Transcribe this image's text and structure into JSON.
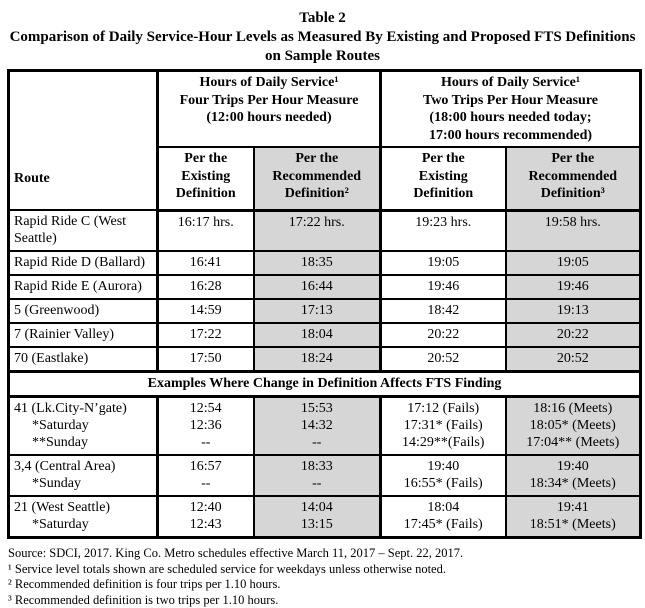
{
  "page": {
    "title": "Table 2",
    "subtitle": "Comparison of Daily Service-Hour Levels as Measured By Existing and Proposed FTS Definitions on Sample Routes"
  },
  "table": {
    "route_header": "Route",
    "group_headers": [
      "Hours of Daily Service¹\nFour Trips Per Hour Measure\n(12:00 hours needed)",
      "Hours of Daily Service¹\nTwo Trips Per Hour Measure\n(18:00 hours needed today;\n17:00 hours recommended)"
    ],
    "col_headers": [
      "Per the\nExisting\nDefinition",
      "Per the\nRecommended\nDefinition²",
      "Per the\nExisting\nDefinition",
      "Per the\nRecommended\nDefinition³"
    ],
    "rows": [
      {
        "lines": [
          {
            "route": "Rapid Ride C (West Seattle)",
            "values": [
              "16:17 hrs.",
              "17:22 hrs.",
              "19:23 hrs.",
              "19:58 hrs."
            ]
          }
        ]
      },
      {
        "lines": [
          {
            "route": "Rapid Ride D (Ballard)",
            "values": [
              "16:41",
              "18:35",
              "19:05",
              "19:05"
            ]
          }
        ]
      },
      {
        "lines": [
          {
            "route": "Rapid Ride E (Aurora)",
            "values": [
              "16:28",
              "16:44",
              "19:46",
              "19:46"
            ]
          }
        ]
      },
      {
        "lines": [
          {
            "route": "5 (Greenwood)",
            "values": [
              "14:59",
              "17:13",
              "18:42",
              "19:13"
            ]
          }
        ]
      },
      {
        "lines": [
          {
            "route": "7 (Rainier Valley)",
            "values": [
              "17:22",
              "18:04",
              "20:22",
              "20:22"
            ]
          }
        ]
      },
      {
        "lines": [
          {
            "route": "70 (Eastlake)",
            "values": [
              "17:50",
              "18:24",
              "20:52",
              "20:52"
            ]
          }
        ]
      },
      {
        "type": "section",
        "label": "Examples Where Change in Definition Affects FTS Finding"
      },
      {
        "lines": [
          {
            "route": "41 (Lk.City-N’gate)",
            "values": [
              "12:54",
              "15:53",
              "17:12 (Fails)",
              "18:16 (Meets)"
            ]
          },
          {
            "route": "*Saturday",
            "indent": true,
            "values": [
              "12:36",
              "14:32",
              "17:31* (Fails)",
              "18:05* (Meets)"
            ]
          },
          {
            "route": "**Sunday",
            "indent": true,
            "values": [
              "--",
              "--",
              "14:29**(Fails)",
              "17:04** (Meets)"
            ]
          }
        ]
      },
      {
        "lines": [
          {
            "route": "3,4 (Central Area)",
            "values": [
              "16:57",
              "18:33",
              "19:40",
              "19:40"
            ]
          },
          {
            "route": "*Sunday",
            "indent": true,
            "values": [
              "--",
              "--",
              "16:55* (Fails)",
              "18:34* (Meets)"
            ]
          }
        ]
      },
      {
        "lines": [
          {
            "route": "21 (West Seattle)",
            "values": [
              "12:40",
              "14:04",
              "18:04",
              "19:41"
            ]
          },
          {
            "route": "*Saturday",
            "indent": true,
            "values": [
              "12:43",
              "13:15",
              "17:45* (Fails)",
              "18:51* (Meets)"
            ]
          }
        ]
      }
    ]
  },
  "footnotes": [
    "Source: SDCI, 2017. King Co. Metro schedules effective March 11, 2017 – Sept. 22, 2017.",
    "¹ Service level totals shown are scheduled service for weekdays unless otherwise noted.",
    "² Recommended definition is four trips per 1.10 hours.",
    "³ Recommended definition is two trips per 1.10 hours."
  ],
  "colors": {
    "highlight": "#d6d6d6",
    "border": "#000000",
    "text": "#000000"
  }
}
